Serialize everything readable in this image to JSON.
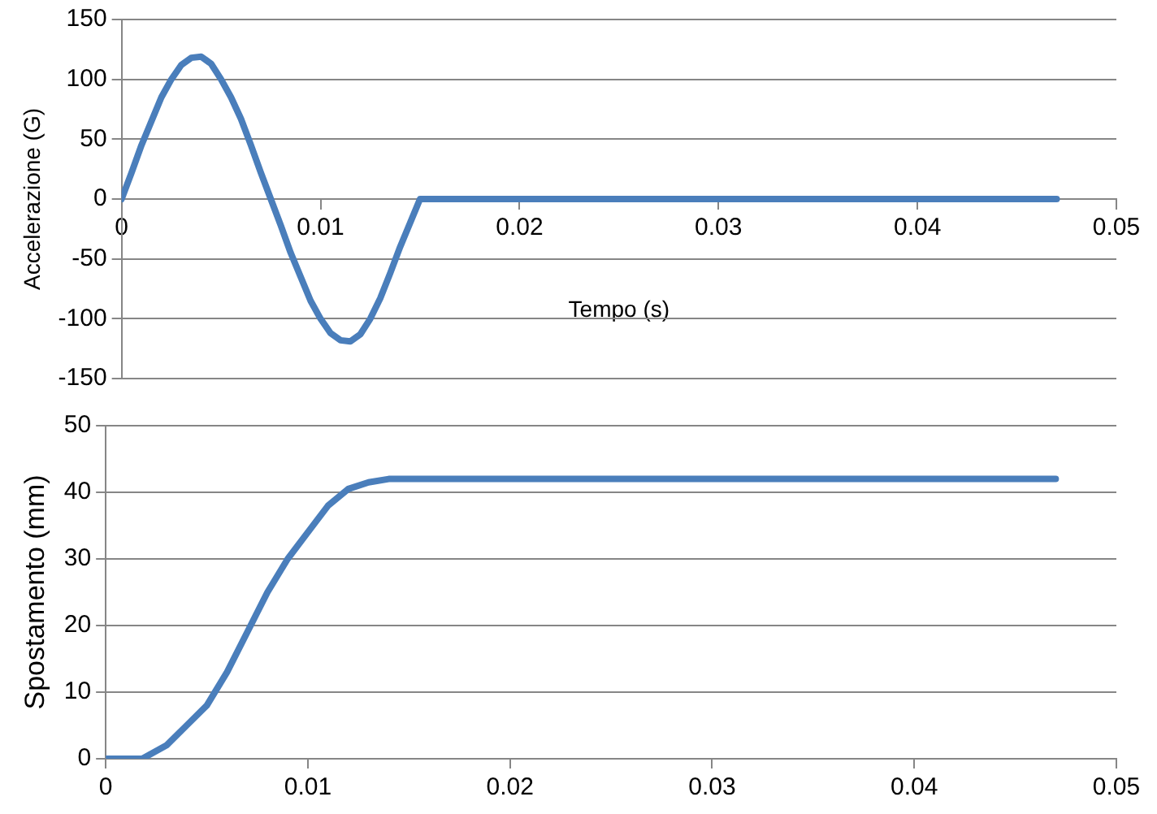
{
  "chart_data": [
    {
      "type": "line",
      "xlabel": "Tempo (s)",
      "ylabel": "Accelerazione (G)",
      "xlim": [
        0,
        0.05
      ],
      "xticks": [
        0,
        0.01,
        0.02,
        0.03,
        0.04,
        0.05
      ],
      "ylim": [
        -150,
        150
      ],
      "yticks": [
        -150,
        -100,
        -50,
        0,
        50,
        100,
        150
      ],
      "grid": "y",
      "marker": "none",
      "line_style": "solid",
      "legend": false,
      "series": [
        {
          "color": "#4a7ebb",
          "x": [
            0,
            0.0005,
            0.001,
            0.0015,
            0.002,
            0.0025,
            0.003,
            0.0035,
            0.004,
            0.0045,
            0.005,
            0.0055,
            0.006,
            0.0065,
            0.007,
            0.0075,
            0.008,
            0.0085,
            0.009,
            0.0095,
            0.01,
            0.0105,
            0.011,
            0.0115,
            0.012,
            0.0125,
            0.013,
            0.0135,
            0.014,
            0.0145,
            0.015,
            0.02,
            0.03,
            0.04,
            0.047
          ],
          "values": [
            0,
            22,
            45,
            65,
            85,
            100,
            112,
            118,
            119,
            113,
            100,
            85,
            67,
            45,
            22,
            0,
            -22,
            -45,
            -65,
            -85,
            -100,
            -112,
            -118,
            -119,
            -113,
            -100,
            -83,
            -62,
            -40,
            -20,
            0,
            0,
            0,
            0,
            0
          ]
        }
      ]
    },
    {
      "type": "line",
      "ylabel": "Spostamento (mm)",
      "xlim": [
        0,
        0.05
      ],
      "xticks": [
        0,
        0.01,
        0.02,
        0.03,
        0.04,
        0.05
      ],
      "ylim": [
        0,
        50
      ],
      "yticks": [
        0,
        10,
        20,
        30,
        40,
        50
      ],
      "grid": "y",
      "marker": "none",
      "line_style": "solid",
      "legend": false,
      "series": [
        {
          "color": "#4a7ebb",
          "x": [
            0,
            0.0018,
            0.003,
            0.004,
            0.005,
            0.006,
            0.007,
            0.008,
            0.009,
            0.01,
            0.011,
            0.012,
            0.013,
            0.014,
            0.02,
            0.03,
            0.04,
            0.047
          ],
          "values": [
            0,
            0,
            2,
            5,
            8,
            13,
            19,
            25,
            30,
            34,
            38,
            40.5,
            41.5,
            42,
            42,
            42,
            42,
            42
          ]
        }
      ]
    }
  ]
}
